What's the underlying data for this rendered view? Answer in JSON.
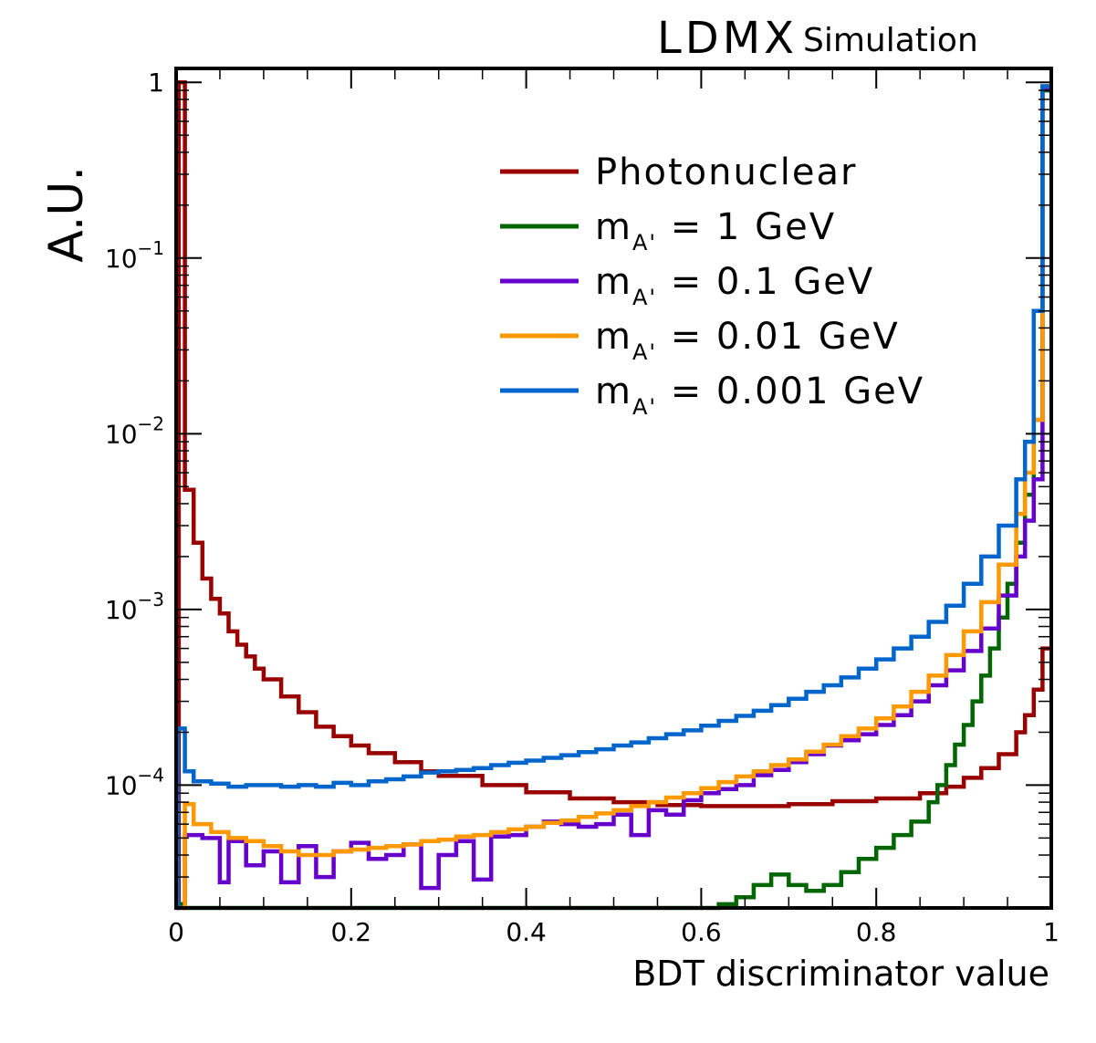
{
  "header": {
    "experiment": "LDMX",
    "tag": "Simulation"
  },
  "chart_data": {
    "type": "line",
    "style": "step-histogram",
    "xlabel": "BDT discriminator value",
    "ylabel": "A.U.",
    "xlim": [
      0,
      1
    ],
    "ylim": [
      2e-05,
      1.2
    ],
    "yscale": "log",
    "grid": false,
    "legend_position": "top-right",
    "x_ticks": [
      {
        "value": 0,
        "label": "0"
      },
      {
        "value": 0.2,
        "label": "0.2"
      },
      {
        "value": 0.4,
        "label": "0.4"
      },
      {
        "value": 0.6,
        "label": "0.6"
      },
      {
        "value": 0.8,
        "label": "0.8"
      },
      {
        "value": 1,
        "label": "1"
      }
    ],
    "y_ticks": [
      {
        "value": 1,
        "label": "1",
        "exp": ""
      },
      {
        "value": 0.1,
        "label": "10",
        "exp": "−1"
      },
      {
        "value": 0.01,
        "label": "10",
        "exp": "−2"
      },
      {
        "value": 0.001,
        "label": "10",
        "exp": "−3"
      },
      {
        "value": 0.0001,
        "label": "10",
        "exp": "−4"
      }
    ],
    "series": [
      {
        "name": "Photonuclear",
        "label_main": "Photonuclear",
        "label_sub": "",
        "label_rest": "",
        "color": "#990000",
        "points": [
          [
            0.0,
            2e-05
          ],
          [
            0.003,
            1.0
          ],
          [
            0.01,
            0.0048
          ],
          [
            0.02,
            0.0024
          ],
          [
            0.03,
            0.0015
          ],
          [
            0.04,
            0.00115
          ],
          [
            0.05,
            0.00095
          ],
          [
            0.06,
            0.00075
          ],
          [
            0.07,
            0.00063
          ],
          [
            0.08,
            0.00054
          ],
          [
            0.09,
            0.00046
          ],
          [
            0.1,
            0.0004
          ],
          [
            0.12,
            0.00032
          ],
          [
            0.14,
            0.00026
          ],
          [
            0.16,
            0.000215
          ],
          [
            0.18,
            0.00019
          ],
          [
            0.2,
            0.000168
          ],
          [
            0.22,
            0.000152
          ],
          [
            0.25,
            0.000135
          ],
          [
            0.28,
            0.00012
          ],
          [
            0.3,
            0.000113
          ],
          [
            0.35,
            0.0001
          ],
          [
            0.4,
            9.1e-05
          ],
          [
            0.45,
            8.4e-05
          ],
          [
            0.5,
            8e-05
          ],
          [
            0.55,
            7.7e-05
          ],
          [
            0.6,
            7.6e-05
          ],
          [
            0.65,
            7.6e-05
          ],
          [
            0.7,
            7.8e-05
          ],
          [
            0.75,
            8.1e-05
          ],
          [
            0.8,
            8.4e-05
          ],
          [
            0.85,
            9e-05
          ],
          [
            0.88,
            9.8e-05
          ],
          [
            0.9,
            0.00011
          ],
          [
            0.92,
            0.000125
          ],
          [
            0.94,
            0.00015
          ],
          [
            0.96,
            0.0002
          ],
          [
            0.97,
            0.00025
          ],
          [
            0.98,
            0.00035
          ],
          [
            0.99,
            0.0006
          ],
          [
            1.0,
            0.0006
          ]
        ]
      },
      {
        "name": "1 GeV",
        "label_main": "m",
        "label_sub": "A'",
        "label_rest": " = 1 GeV",
        "color": "#006600",
        "points": [
          [
            0.0,
            2e-05
          ],
          [
            0.002,
            2.1e-05
          ],
          [
            0.01,
            2e-05
          ],
          [
            0.6,
            2e-05
          ],
          [
            0.62,
            2.1e-05
          ],
          [
            0.64,
            2.3e-05
          ],
          [
            0.66,
            2.7e-05
          ],
          [
            0.68,
            3.1e-05
          ],
          [
            0.7,
            2.7e-05
          ],
          [
            0.72,
            2.5e-05
          ],
          [
            0.74,
            2.7e-05
          ],
          [
            0.76,
            3.2e-05
          ],
          [
            0.78,
            3.8e-05
          ],
          [
            0.8,
            4.4e-05
          ],
          [
            0.82,
            5.2e-05
          ],
          [
            0.84,
            6.2e-05
          ],
          [
            0.86,
            8e-05
          ],
          [
            0.87,
            0.0001
          ],
          [
            0.88,
            0.00013
          ],
          [
            0.89,
            0.00017
          ],
          [
            0.9,
            0.00022
          ],
          [
            0.91,
            0.0003
          ],
          [
            0.92,
            0.00042
          ],
          [
            0.93,
            0.0006
          ],
          [
            0.94,
            0.0009
          ],
          [
            0.95,
            0.0014
          ],
          [
            0.96,
            0.0024
          ],
          [
            0.97,
            0.0045
          ],
          [
            0.98,
            0.012
          ],
          [
            0.99,
            0.9
          ],
          [
            1.0,
            0.9
          ]
        ]
      },
      {
        "name": "0.1 GeV",
        "label_main": "m",
        "label_sub": "A'",
        "label_rest": " = 0.1 GeV",
        "color": "#6600cc",
        "points": [
          [
            0.0,
            2e-05
          ],
          [
            0.01,
            5.2e-05
          ],
          [
            0.03,
            5e-05
          ],
          [
            0.05,
            2.8e-05
          ],
          [
            0.06,
            4.8e-05
          ],
          [
            0.08,
            3.5e-05
          ],
          [
            0.1,
            4.2e-05
          ],
          [
            0.12,
            2.8e-05
          ],
          [
            0.14,
            4.5e-05
          ],
          [
            0.16,
            3e-05
          ],
          [
            0.18,
            4.2e-05
          ],
          [
            0.2,
            4.7e-05
          ],
          [
            0.22,
            3.8e-05
          ],
          [
            0.24,
            4e-05
          ],
          [
            0.26,
            4.6e-05
          ],
          [
            0.28,
            2.6e-05
          ],
          [
            0.3,
            4e-05
          ],
          [
            0.32,
            4.8e-05
          ],
          [
            0.34,
            2.9e-05
          ],
          [
            0.36,
            5.1e-05
          ],
          [
            0.38,
            5.2e-05
          ],
          [
            0.4,
            5.8e-05
          ],
          [
            0.42,
            6.2e-05
          ],
          [
            0.44,
            6e-05
          ],
          [
            0.46,
            5.8e-05
          ],
          [
            0.48,
            6e-05
          ],
          [
            0.5,
            6.8e-05
          ],
          [
            0.52,
            5.2e-05
          ],
          [
            0.54,
            7.2e-05
          ],
          [
            0.56,
            6.8e-05
          ],
          [
            0.58,
            8.2e-05
          ],
          [
            0.6,
            9e-05
          ],
          [
            0.62,
            9.5e-05
          ],
          [
            0.64,
            0.0001
          ],
          [
            0.66,
            0.000114
          ],
          [
            0.68,
            0.000122
          ],
          [
            0.7,
            0.000135
          ],
          [
            0.72,
            0.00015
          ],
          [
            0.74,
            0.000168
          ],
          [
            0.76,
            0.00018
          ],
          [
            0.78,
            0.000195
          ],
          [
            0.8,
            0.00022
          ],
          [
            0.82,
            0.00025
          ],
          [
            0.84,
            0.0003
          ],
          [
            0.86,
            0.00037
          ],
          [
            0.88,
            0.00045
          ],
          [
            0.9,
            0.00058
          ],
          [
            0.92,
            0.00078
          ],
          [
            0.94,
            0.0012
          ],
          [
            0.96,
            0.002
          ],
          [
            0.97,
            0.0032
          ],
          [
            0.98,
            0.0055
          ],
          [
            0.99,
            0.93
          ],
          [
            1.0,
            0.93
          ]
        ]
      },
      {
        "name": "0.01 GeV",
        "label_main": "m",
        "label_sub": "A'",
        "label_rest": " = 0.01 GeV",
        "color": "#ff9900",
        "points": [
          [
            0.0,
            2e-05
          ],
          [
            0.01,
            7.8e-05
          ],
          [
            0.02,
            6e-05
          ],
          [
            0.04,
            5.4e-05
          ],
          [
            0.06,
            5e-05
          ],
          [
            0.08,
            4.8e-05
          ],
          [
            0.1,
            4.5e-05
          ],
          [
            0.12,
            4.2e-05
          ],
          [
            0.14,
            4e-05
          ],
          [
            0.16,
            4e-05
          ],
          [
            0.18,
            4.2e-05
          ],
          [
            0.2,
            4.3e-05
          ],
          [
            0.22,
            4.4e-05
          ],
          [
            0.24,
            4.5e-05
          ],
          [
            0.26,
            4.6e-05
          ],
          [
            0.28,
            4.8e-05
          ],
          [
            0.3,
            4.9e-05
          ],
          [
            0.32,
            5.1e-05
          ],
          [
            0.34,
            5.2e-05
          ],
          [
            0.36,
            5.4e-05
          ],
          [
            0.38,
            5.6e-05
          ],
          [
            0.4,
            5.8e-05
          ],
          [
            0.42,
            6.1e-05
          ],
          [
            0.44,
            6.3e-05
          ],
          [
            0.46,
            6.6e-05
          ],
          [
            0.48,
            6.9e-05
          ],
          [
            0.5,
            7.2e-05
          ],
          [
            0.52,
            7.6e-05
          ],
          [
            0.54,
            8e-05
          ],
          [
            0.56,
            8.5e-05
          ],
          [
            0.58,
            9e-05
          ],
          [
            0.6,
            9.6e-05
          ],
          [
            0.62,
            0.000104
          ],
          [
            0.64,
            0.000112
          ],
          [
            0.66,
            0.00012
          ],
          [
            0.68,
            0.00013
          ],
          [
            0.7,
            0.00014
          ],
          [
            0.72,
            0.000155
          ],
          [
            0.74,
            0.00017
          ],
          [
            0.76,
            0.00019
          ],
          [
            0.78,
            0.00021
          ],
          [
            0.8,
            0.00024
          ],
          [
            0.82,
            0.00028
          ],
          [
            0.84,
            0.00034
          ],
          [
            0.86,
            0.00042
          ],
          [
            0.88,
            0.00055
          ],
          [
            0.9,
            0.00075
          ],
          [
            0.92,
            0.0011
          ],
          [
            0.94,
            0.0018
          ],
          [
            0.96,
            0.0035
          ],
          [
            0.97,
            0.006
          ],
          [
            0.98,
            0.012
          ],
          [
            0.99,
            0.95
          ],
          [
            1.0,
            0.95
          ]
        ]
      },
      {
        "name": "0.001 GeV",
        "label_main": "m",
        "label_sub": "A'",
        "label_rest": " = 0.001 GeV",
        "color": "#0066cc",
        "points": [
          [
            0.0,
            2e-05
          ],
          [
            0.002,
            0.00021
          ],
          [
            0.01,
            0.00012
          ],
          [
            0.02,
            0.000105
          ],
          [
            0.04,
            0.000102
          ],
          [
            0.06,
            9.8e-05
          ],
          [
            0.08,
            0.0001
          ],
          [
            0.1,
            0.0001
          ],
          [
            0.12,
            9.8e-05
          ],
          [
            0.14,
            0.0001
          ],
          [
            0.16,
            9.8e-05
          ],
          [
            0.18,
            0.000103
          ],
          [
            0.2,
            0.0001
          ],
          [
            0.22,
            0.000105
          ],
          [
            0.24,
            0.000108
          ],
          [
            0.26,
            0.000112
          ],
          [
            0.28,
            0.000118
          ],
          [
            0.3,
            0.00012
          ],
          [
            0.32,
            0.000122
          ],
          [
            0.34,
            0.000125
          ],
          [
            0.36,
            0.00013
          ],
          [
            0.38,
            0.000134
          ],
          [
            0.4,
            0.000138
          ],
          [
            0.42,
            0.000143
          ],
          [
            0.44,
            0.000148
          ],
          [
            0.46,
            0.000154
          ],
          [
            0.48,
            0.00016
          ],
          [
            0.5,
            0.000168
          ],
          [
            0.52,
            0.000175
          ],
          [
            0.54,
            0.000185
          ],
          [
            0.56,
            0.000195
          ],
          [
            0.58,
            0.000205
          ],
          [
            0.6,
            0.000218
          ],
          [
            0.62,
            0.000232
          ],
          [
            0.64,
            0.000248
          ],
          [
            0.66,
            0.000265
          ],
          [
            0.68,
            0.000285
          ],
          [
            0.7,
            0.00031
          ],
          [
            0.72,
            0.00034
          ],
          [
            0.74,
            0.00037
          ],
          [
            0.76,
            0.00041
          ],
          [
            0.78,
            0.00046
          ],
          [
            0.8,
            0.00052
          ],
          [
            0.82,
            0.0006
          ],
          [
            0.84,
            0.0007
          ],
          [
            0.86,
            0.00085
          ],
          [
            0.88,
            0.00105
          ],
          [
            0.9,
            0.0014
          ],
          [
            0.92,
            0.002
          ],
          [
            0.94,
            0.003
          ],
          [
            0.96,
            0.0055
          ],
          [
            0.97,
            0.009
          ],
          [
            0.98,
            0.05
          ],
          [
            0.99,
            0.95
          ],
          [
            1.0,
            0.95
          ]
        ]
      }
    ]
  }
}
